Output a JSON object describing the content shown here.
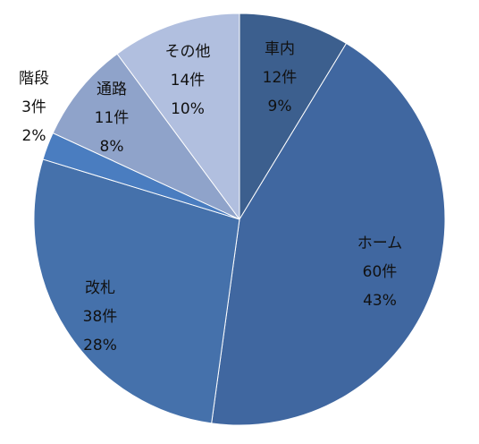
{
  "chart_data": {
    "type": "pie",
    "categories": [
      "車内",
      "ホーム",
      "改札",
      "階段",
      "通路",
      "その他"
    ],
    "values": [
      12,
      60,
      38,
      3,
      11,
      14
    ],
    "value_labels": [
      "12件",
      "60件",
      "38件",
      "3件",
      "11件",
      "14件"
    ],
    "percents": [
      9,
      43,
      28,
      2,
      8,
      10
    ],
    "percent_labels": [
      "9%",
      "43%",
      "28%",
      "2%",
      "8%",
      "10%"
    ],
    "colors": [
      "#3c5f8e",
      "#4067a0",
      "#4571ab",
      "#4a7dc0",
      "#8fa3ca",
      "#b1bfdf"
    ]
  }
}
